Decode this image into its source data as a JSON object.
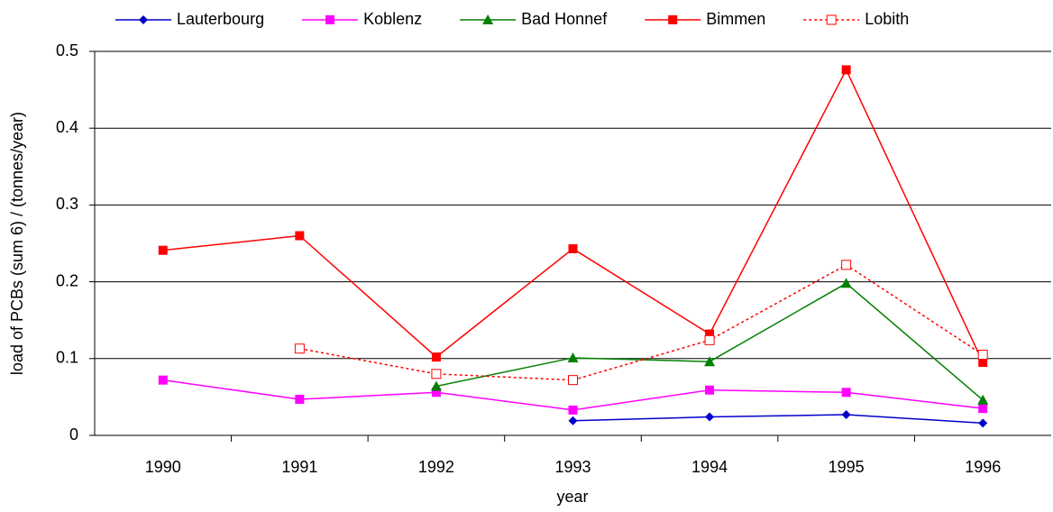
{
  "chart_data": {
    "type": "line",
    "x_label": "year",
    "y_label": "load of PCBs (sum 6) / (tonnes/year)",
    "categories": [
      "1990",
      "1991",
      "1992",
      "1993",
      "1994",
      "1995",
      "1996"
    ],
    "series": [
      {
        "name": "Lauterbourg",
        "color": "#0000cc",
        "marker": "diamond",
        "dash": false,
        "values": [
          null,
          null,
          null,
          0.019,
          0.024,
          0.027,
          0.016
        ]
      },
      {
        "name": "Koblenz",
        "color": "#ff00ff",
        "marker": "square",
        "dash": false,
        "values": [
          0.072,
          0.047,
          0.056,
          0.033,
          0.059,
          0.056,
          0.035
        ]
      },
      {
        "name": "Bad Honnef",
        "color": "#008000",
        "marker": "triangle",
        "dash": false,
        "values": [
          null,
          null,
          0.064,
          0.101,
          0.096,
          0.198,
          0.046
        ]
      },
      {
        "name": "Bimmen",
        "color": "#ff0000",
        "marker": "square",
        "dash": false,
        "values": [
          0.241,
          0.26,
          0.102,
          0.243,
          0.132,
          0.476,
          0.095
        ]
      },
      {
        "name": "Lobith",
        "color": "#ff0000",
        "marker": "open-square",
        "dash": true,
        "values": [
          null,
          0.113,
          0.08,
          0.072,
          0.124,
          0.222,
          0.105
        ]
      }
    ],
    "ylim": [
      0,
      0.5
    ],
    "yticks": [
      0,
      0.1,
      0.2,
      0.3,
      0.4,
      0.5
    ],
    "grid": true,
    "legend": "top"
  }
}
